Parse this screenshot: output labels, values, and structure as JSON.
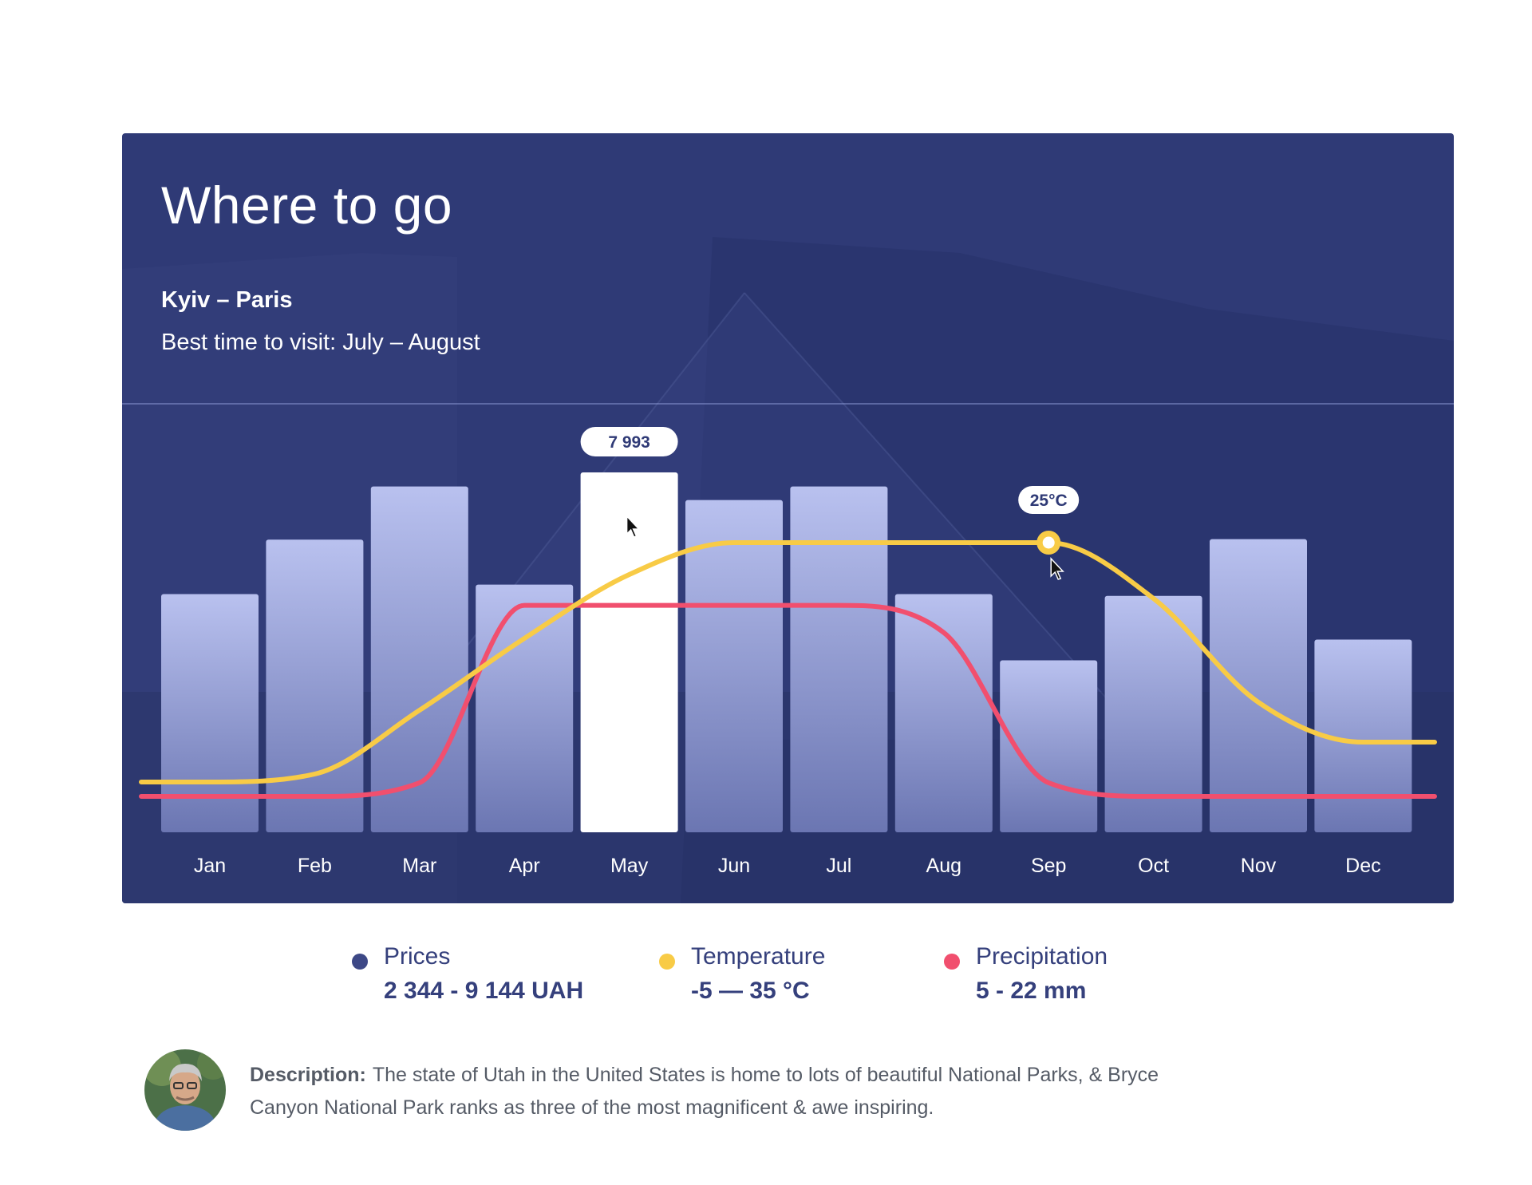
{
  "card": {
    "title": "Where to go",
    "route": "Kyiv – Paris",
    "best_time": "Best time to visit: July – August"
  },
  "chart_data": {
    "type": "bar",
    "categories": [
      "Jan",
      "Feb",
      "Mar",
      "Apr",
      "May",
      "Jun",
      "Jul",
      "Aug",
      "Sep",
      "Oct",
      "Nov",
      "Dec"
    ],
    "series": [
      {
        "name": "Prices",
        "type": "bar",
        "values": [
          5290,
          6500,
          7680,
          5500,
          7993,
          7380,
          7680,
          5290,
          3820,
          5250,
          6510,
          4280
        ]
      },
      {
        "name": "Temperature",
        "type": "line",
        "values": [
          -5,
          -4,
          4,
          13,
          21,
          25,
          25,
          25,
          25,
          18,
          5,
          0
        ]
      },
      {
        "name": "Precipitation",
        "type": "line",
        "values": [
          5,
          5,
          6,
          19,
          19,
          19,
          19,
          17,
          6,
          5,
          5,
          5
        ]
      }
    ],
    "highlight": {
      "category": "May",
      "series": "Prices",
      "label": "7 993"
    },
    "tooltip": {
      "category": "Sep",
      "series": "Temperature",
      "label": "25°C"
    },
    "colors": {
      "bars": "#b9c1ef",
      "highlight_bar": "#ffffff",
      "temperature": "#f8cb46",
      "precipitation": "#f14f6e",
      "card_bg": "#2f3a76"
    }
  },
  "legend": [
    {
      "name": "Prices",
      "range": "2 344 - 9 144 UAH",
      "color": "#3d4886"
    },
    {
      "name": "Temperature",
      "range": "-5 — 35 °C",
      "color": "#f8cb46"
    },
    {
      "name": "Precipitation",
      "range": "5 - 22 mm",
      "color": "#f14f6e"
    }
  ],
  "description": {
    "label": "Description:",
    "text": "The state of Utah in the United States is home to lots of beautiful National Parks, & Bryce Canyon National Park ranks as three of the most magnificent & awe inspiring."
  }
}
